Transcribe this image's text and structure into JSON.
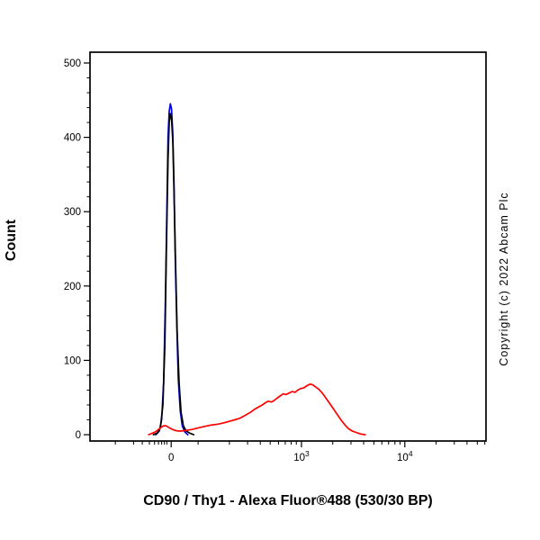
{
  "caption": "CD90 / Thy1 - Alexa Fluor®488 (530/30 BP)",
  "copyright": "Copyright (c) 2022 Abcam Plc",
  "chart_data": {
    "type": "line",
    "subtype": "flow-cytometry-histogram",
    "title": "",
    "xlabel": "CD90 / Thy1 - Alexa Fluor®488 (530/30 BP)",
    "ylabel": "Count",
    "ylim": [
      0,
      500
    ],
    "y_major_ticks": [
      0,
      100,
      200,
      300,
      400,
      500
    ],
    "y_minor_step": 20,
    "x_scale": "logicle",
    "grid": false,
    "legend": "none",
    "x_major_ticks": [
      {
        "pos": 0.205,
        "label": "0"
      },
      {
        "pos": 0.534,
        "base": "10",
        "exp": "3"
      },
      {
        "pos": 0.795,
        "base": "10",
        "exp": "4"
      }
    ],
    "x_minor_ticks": [
      0.064,
      0.11,
      0.132,
      0.15,
      0.163,
      0.173,
      0.181,
      0.188,
      0.194,
      0.273,
      0.352,
      0.398,
      0.43,
      0.455,
      0.476,
      0.493,
      0.508,
      0.521,
      0.613,
      0.659,
      0.691,
      0.717,
      0.737,
      0.754,
      0.77,
      0.783,
      0.874,
      0.92,
      0.952,
      0.978,
      0.997
    ],
    "series": [
      {
        "name": "blue-control-peak",
        "color": "#0000dd",
        "peak_x_label": "0",
        "peak_count": 445,
        "points": [
          [
            0.166,
            0
          ],
          [
            0.175,
            5
          ],
          [
            0.181,
            20
          ],
          [
            0.186,
            70
          ],
          [
            0.19,
            170
          ],
          [
            0.194,
            300
          ],
          [
            0.197,
            400
          ],
          [
            0.2,
            435
          ],
          [
            0.203,
            445
          ],
          [
            0.206,
            438
          ],
          [
            0.209,
            405
          ],
          [
            0.212,
            340
          ],
          [
            0.215,
            245
          ],
          [
            0.219,
            150
          ],
          [
            0.223,
            75
          ],
          [
            0.228,
            32
          ],
          [
            0.233,
            12
          ],
          [
            0.239,
            4
          ],
          [
            0.247,
            0
          ]
        ]
      },
      {
        "name": "black-control-peak",
        "color": "#000000",
        "peak_x_label": "0",
        "peak_count": 432,
        "points": [
          [
            0.16,
            0
          ],
          [
            0.17,
            2
          ],
          [
            0.178,
            10
          ],
          [
            0.184,
            40
          ],
          [
            0.189,
            120
          ],
          [
            0.193,
            250
          ],
          [
            0.197,
            370
          ],
          [
            0.2,
            420
          ],
          [
            0.203,
            432
          ],
          [
            0.206,
            425
          ],
          [
            0.209,
            395
          ],
          [
            0.212,
            330
          ],
          [
            0.216,
            235
          ],
          [
            0.22,
            140
          ],
          [
            0.225,
            70
          ],
          [
            0.23,
            30
          ],
          [
            0.236,
            12
          ],
          [
            0.243,
            5
          ],
          [
            0.252,
            2
          ],
          [
            0.262,
            0
          ]
        ]
      },
      {
        "name": "red-cd90-positive",
        "color": "#ff0000",
        "peak_x_label": "~1200 (just right of 10^3)",
        "peak_count": 68,
        "points": [
          [
            0.148,
            0
          ],
          [
            0.158,
            2
          ],
          [
            0.166,
            4
          ],
          [
            0.173,
            7
          ],
          [
            0.18,
            10
          ],
          [
            0.186,
            12
          ],
          [
            0.192,
            12
          ],
          [
            0.198,
            10
          ],
          [
            0.205,
            8
          ],
          [
            0.213,
            6
          ],
          [
            0.222,
            5
          ],
          [
            0.232,
            5
          ],
          [
            0.245,
            6
          ],
          [
            0.258,
            7
          ],
          [
            0.272,
            9
          ],
          [
            0.288,
            11
          ],
          [
            0.305,
            13
          ],
          [
            0.322,
            14
          ],
          [
            0.338,
            16
          ],
          [
            0.352,
            18
          ],
          [
            0.365,
            20
          ],
          [
            0.378,
            22
          ],
          [
            0.392,
            26
          ],
          [
            0.405,
            30
          ],
          [
            0.415,
            34
          ],
          [
            0.425,
            37
          ],
          [
            0.435,
            40
          ],
          [
            0.443,
            43
          ],
          [
            0.45,
            45
          ],
          [
            0.458,
            44
          ],
          [
            0.465,
            46
          ],
          [
            0.472,
            49
          ],
          [
            0.48,
            52
          ],
          [
            0.488,
            55
          ],
          [
            0.495,
            54
          ],
          [
            0.503,
            56
          ],
          [
            0.51,
            58
          ],
          [
            0.518,
            57
          ],
          [
            0.525,
            60
          ],
          [
            0.532,
            62
          ],
          [
            0.54,
            63
          ],
          [
            0.548,
            66
          ],
          [
            0.556,
            68
          ],
          [
            0.563,
            67
          ],
          [
            0.57,
            64
          ],
          [
            0.578,
            61
          ],
          [
            0.585,
            57
          ],
          [
            0.592,
            52
          ],
          [
            0.6,
            46
          ],
          [
            0.608,
            40
          ],
          [
            0.617,
            33
          ],
          [
            0.626,
            26
          ],
          [
            0.635,
            19
          ],
          [
            0.644,
            13
          ],
          [
            0.653,
            8
          ],
          [
            0.662,
            5
          ],
          [
            0.672,
            3
          ],
          [
            0.683,
            1
          ],
          [
            0.695,
            0
          ]
        ]
      }
    ]
  }
}
